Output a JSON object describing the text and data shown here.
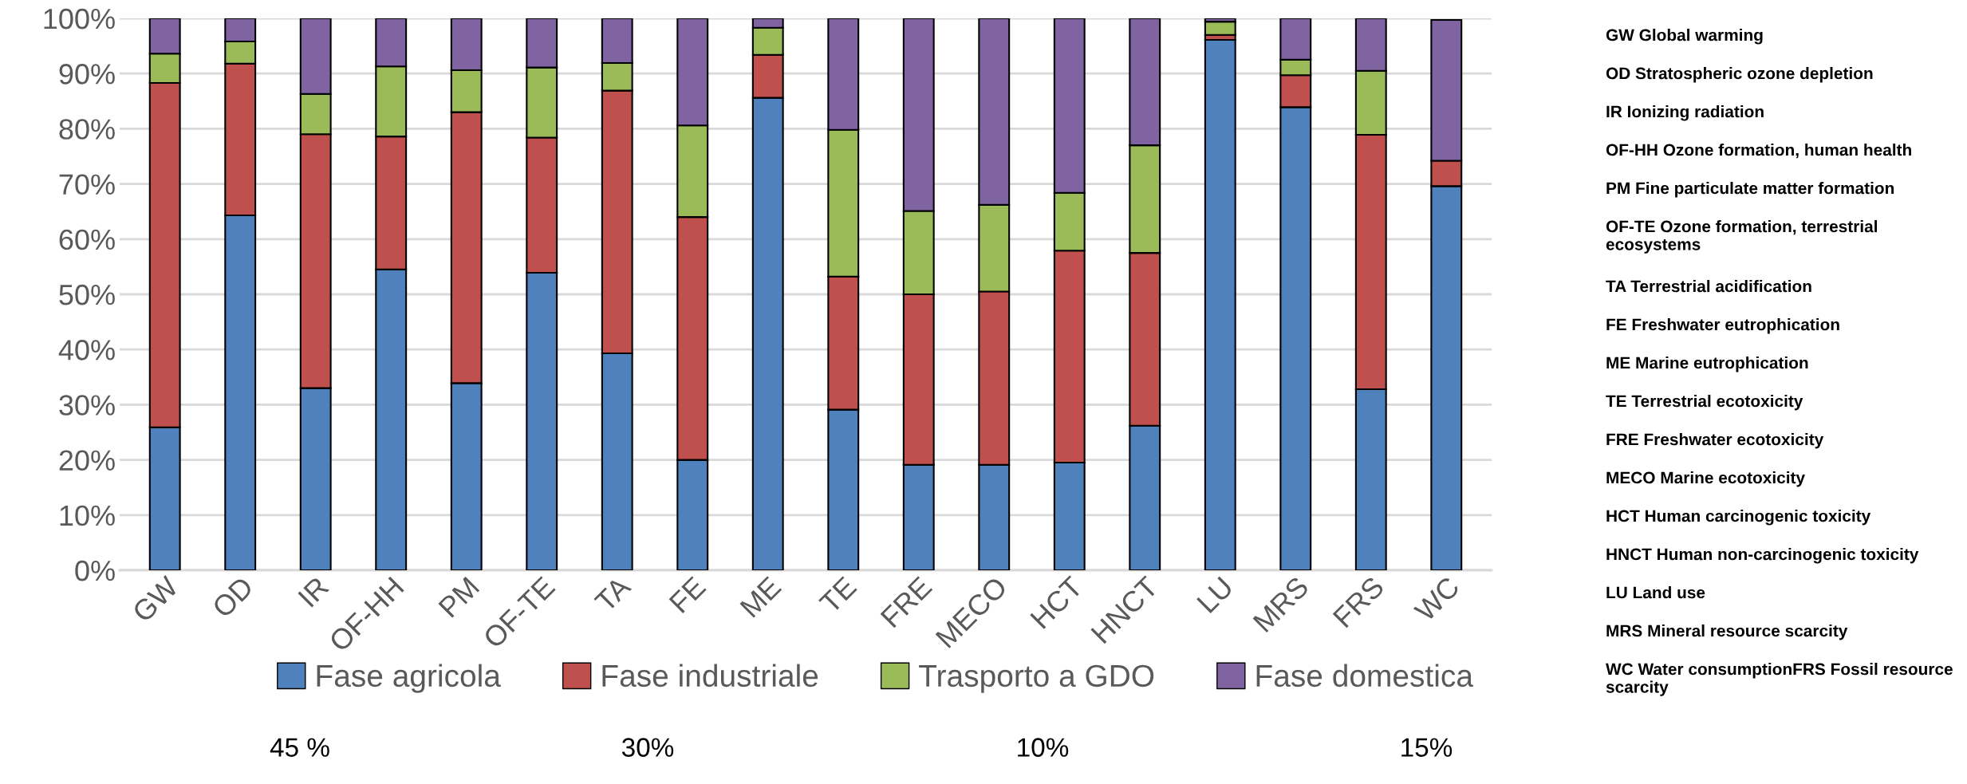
{
  "chart_data": {
    "type": "bar",
    "stacked": true,
    "categories": [
      "GW",
      "OD",
      "IR",
      "OF-HH",
      "PM",
      "OF-TE",
      "TA",
      "FE",
      "ME",
      "TE",
      "FRE",
      "MECO",
      "HCT",
      "HNCT",
      "LU",
      "MRS",
      "FRS",
      "WC"
    ],
    "series": [
      {
        "name": "Fase agricola",
        "color": "#4f81bd",
        "values": [
          25.9,
          64.3,
          33.0,
          54.5,
          33.9,
          53.9,
          39.3,
          20.0,
          85.6,
          29.1,
          19.1,
          19.1,
          19.5,
          26.2,
          96.1,
          83.9,
          32.8,
          69.6
        ]
      },
      {
        "name": "Fase industriale",
        "color": "#c0504d",
        "values": [
          62.4,
          27.5,
          46.0,
          24.1,
          49.1,
          24.5,
          47.6,
          44.0,
          7.8,
          24.1,
          30.9,
          31.4,
          38.4,
          31.3,
          0.9,
          5.8,
          46.1,
          4.6
        ]
      },
      {
        "name": "Trasporto a GDO",
        "color": "#9bbb59",
        "values": [
          5.3,
          4.0,
          7.3,
          12.7,
          7.6,
          12.7,
          5.0,
          16.6,
          4.9,
          26.6,
          15.1,
          15.7,
          10.5,
          19.5,
          2.4,
          2.8,
          11.6,
          null
        ]
      },
      {
        "name": "Fase domestica",
        "color": "#8064a2",
        "values": [
          6.4,
          4.2,
          13.7,
          8.7,
          9.4,
          8.9,
          8.1,
          19.4,
          1.7,
          20.2,
          34.9,
          33.8,
          31.6,
          23.0,
          0.6,
          7.5,
          9.5,
          25.5
        ]
      }
    ],
    "ylim": [
      0,
      100
    ],
    "yticks": [
      {
        "value": 0,
        "label": "0%"
      },
      {
        "value": 10,
        "label": "10%"
      },
      {
        "value": 20,
        "label": "20%"
      },
      {
        "value": 30,
        "label": "30%"
      },
      {
        "value": 40,
        "label": "40%"
      },
      {
        "value": 50,
        "label": "50%"
      },
      {
        "value": 60,
        "label": "60%"
      },
      {
        "value": 70,
        "label": "70%"
      },
      {
        "value": 80,
        "label": "80%"
      },
      {
        "value": 90,
        "label": "90%"
      },
      {
        "value": 100,
        "label": "100%"
      }
    ],
    "grid": "y",
    "legend": "bottom",
    "annotations": [
      "GW Global warming",
      "OD Stratospheric ozone depletion",
      "IR Ionizing radiation",
      "OF-HH Ozone formation, human health",
      "PM Fine particulate matter formation",
      "OF-TE Ozone formation, terrestrial\necosystems",
      "TA Terrestrial acidification",
      "FE Freshwater eutrophication",
      "ME Marine eutrophication",
      "TE Terrestrial ecotoxicity",
      "FRE Freshwater ecotoxicity",
      "MECO Marine ecotoxicity",
      "HCT Human carcinogenic toxicity",
      "HNCT Human non-carcinogenic toxicity",
      "LU Land use",
      "MRS Mineral resource scarcity",
      "WC Water consumptionFRS Fossil resource\nscarcity",
      "45 %",
      "30%",
      "10%",
      "15%"
    ]
  }
}
